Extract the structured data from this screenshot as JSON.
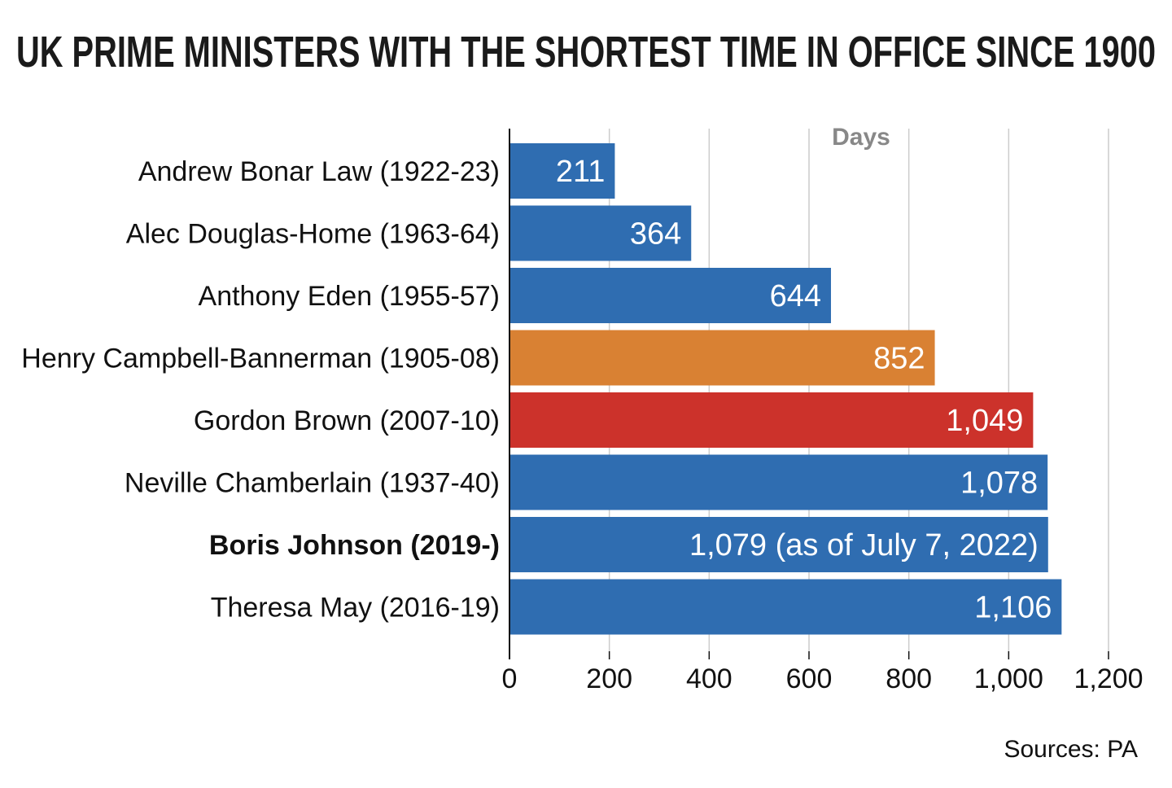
{
  "chart_data": {
    "type": "bar",
    "orientation": "horizontal",
    "title": "UK PRIME MINISTERS WITH THE SHORTEST TIME IN OFFICE SINCE 1900",
    "unit_label": "Days",
    "source": "Sources: PA",
    "xlim": [
      0,
      1200
    ],
    "xticks": [
      0,
      200,
      400,
      600,
      800,
      1000,
      1200
    ],
    "xtick_labels": [
      "0",
      "200",
      "400",
      "600",
      "800",
      "1,000",
      "1,200"
    ],
    "grid": true,
    "categories": [
      "Andrew Bonar Law (1922-23)",
      "Alec Douglas-Home (1963-64)",
      "Anthony Eden (1955-57)",
      "Henry Campbell-Bannerman (1905-08)",
      "Gordon Brown (2007-10)",
      "Neville Chamberlain (1937-40)",
      "Boris Johnson (2019-)",
      "Theresa May (2016-19)"
    ],
    "values": [
      211,
      364,
      644,
      852,
      1049,
      1078,
      1079,
      1106
    ],
    "value_labels": [
      "211",
      "364",
      "644",
      "852",
      "1,049",
      "1,078",
      "1,079 (as of July 7, 2022)",
      "1,106"
    ],
    "bar_colors": [
      "#2f6db1",
      "#2f6db1",
      "#2f6db1",
      "#d98133",
      "#cc322b",
      "#2f6db1",
      "#2f6db1",
      "#2f6db1"
    ],
    "highlight_category": "Boris Johnson (2019-)"
  }
}
